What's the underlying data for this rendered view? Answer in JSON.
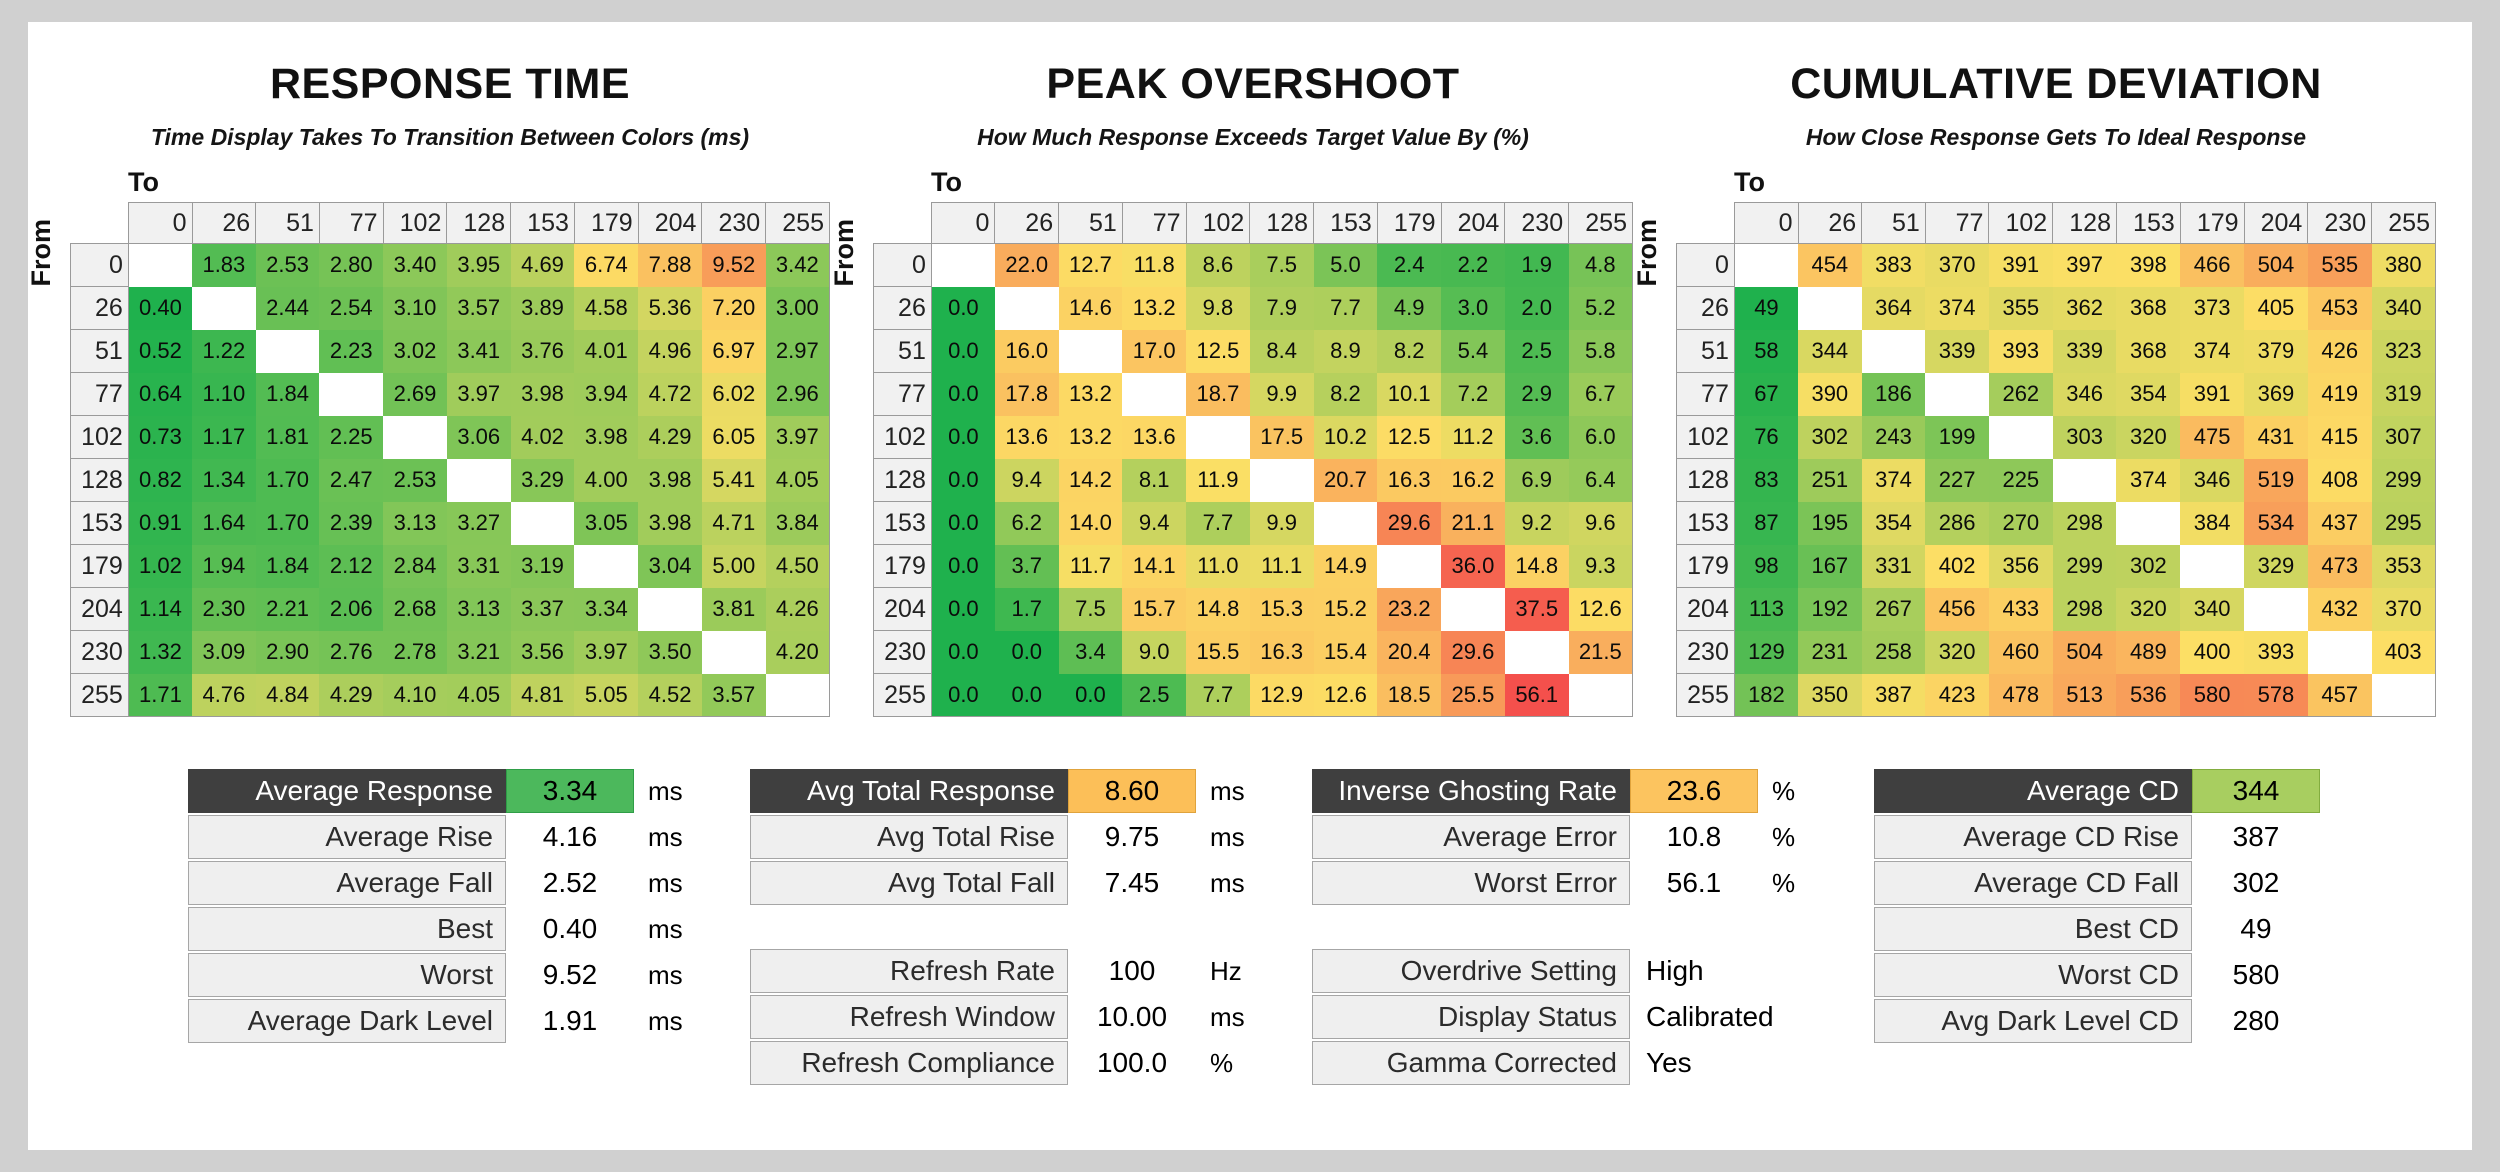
{
  "page": {
    "background": "#d0d0d0",
    "card_background": "#ffffff"
  },
  "colors": {
    "scale_green": "#1fb14d",
    "scale_yellow": "#fcdf65",
    "scale_red": "#f4504c",
    "header_cell_bg": "#f1f1f1",
    "header_cell_border": "#9a9a9a",
    "summary_header_bg": "#3f3f3f",
    "summary_label_bg": "#efefef",
    "summary_label_border": "#a6a6a6"
  },
  "axis": {
    "to_label": "To",
    "from_label": "From"
  },
  "levels": [
    "0",
    "26",
    "51",
    "77",
    "102",
    "128",
    "153",
    "179",
    "204",
    "230",
    "255"
  ],
  "chart_data": [
    {
      "type": "heatmap",
      "title": "RESPONSE TIME",
      "subtitle": "Time Display Takes To Transition Between Colors (ms)",
      "unit": "ms",
      "x_axis": "To",
      "y_axis": "From",
      "categories": [
        0,
        26,
        51,
        77,
        102,
        128,
        153,
        179,
        204,
        230,
        255
      ],
      "rows": [
        [
          null,
          "1.83",
          "2.53",
          "2.80",
          "3.40",
          "3.95",
          "4.69",
          "6.74",
          "7.88",
          "9.52",
          "3.42"
        ],
        [
          "0.40",
          null,
          "2.44",
          "2.54",
          "3.10",
          "3.57",
          "3.89",
          "4.58",
          "5.36",
          "7.20",
          "3.00"
        ],
        [
          "0.52",
          "1.22",
          null,
          "2.23",
          "3.02",
          "3.41",
          "3.76",
          "4.01",
          "4.96",
          "6.97",
          "2.97"
        ],
        [
          "0.64",
          "1.10",
          "1.84",
          null,
          "2.69",
          "3.97",
          "3.98",
          "3.94",
          "4.72",
          "6.02",
          "2.96"
        ],
        [
          "0.73",
          "1.17",
          "1.81",
          "2.25",
          null,
          "3.06",
          "4.02",
          "3.98",
          "4.29",
          "6.05",
          "3.97"
        ],
        [
          "0.82",
          "1.34",
          "1.70",
          "2.47",
          "2.53",
          null,
          "3.29",
          "4.00",
          "3.98",
          "5.41",
          "4.05"
        ],
        [
          "0.91",
          "1.64",
          "1.70",
          "2.39",
          "3.13",
          "3.27",
          null,
          "3.05",
          "3.98",
          "4.71",
          "3.84"
        ],
        [
          "1.02",
          "1.94",
          "1.84",
          "2.12",
          "2.84",
          "3.31",
          "3.19",
          null,
          "3.04",
          "5.00",
          "4.50"
        ],
        [
          "1.14",
          "2.30",
          "2.21",
          "2.06",
          "2.68",
          "3.13",
          "3.37",
          "3.34",
          null,
          "3.81",
          "4.26"
        ],
        [
          "1.32",
          "3.09",
          "2.90",
          "2.76",
          "2.78",
          "3.21",
          "3.56",
          "3.97",
          "3.50",
          null,
          "4.20"
        ],
        [
          "1.71",
          "4.76",
          "4.84",
          "4.29",
          "4.10",
          "4.05",
          "4.81",
          "5.05",
          "4.52",
          "3.57",
          null
        ]
      ],
      "color_scale": {
        "min": 0.4,
        "mid": 6.5,
        "max": 13
      }
    },
    {
      "type": "heatmap",
      "title": "PEAK OVERSHOOT",
      "subtitle": "How Much Response Exceeds Target Value By (%)",
      "unit": "%",
      "x_axis": "To",
      "y_axis": "From",
      "categories": [
        0,
        26,
        51,
        77,
        102,
        128,
        153,
        179,
        204,
        230,
        255
      ],
      "rows": [
        [
          null,
          "22.0",
          "12.7",
          "11.8",
          "8.6",
          "7.5",
          "5.0",
          "2.4",
          "2.2",
          "1.9",
          "4.8"
        ],
        [
          "0.0",
          null,
          "14.6",
          "13.2",
          "9.8",
          "7.9",
          "7.7",
          "4.9",
          "3.0",
          "2.0",
          "5.2"
        ],
        [
          "0.0",
          "16.0",
          null,
          "17.0",
          "12.5",
          "8.4",
          "8.9",
          "8.2",
          "5.4",
          "2.5",
          "5.8"
        ],
        [
          "0.0",
          "17.8",
          "13.2",
          null,
          "18.7",
          "9.9",
          "8.2",
          "10.1",
          "7.2",
          "2.9",
          "6.7"
        ],
        [
          "0.0",
          "13.6",
          "13.2",
          "13.6",
          null,
          "17.5",
          "10.2",
          "12.5",
          "11.2",
          "3.6",
          "6.0"
        ],
        [
          "0.0",
          "9.4",
          "14.2",
          "8.1",
          "11.9",
          null,
          "20.7",
          "16.3",
          "16.2",
          "6.9",
          "6.4"
        ],
        [
          "0.0",
          "6.2",
          "14.0",
          "9.4",
          "7.7",
          "9.9",
          null,
          "29.6",
          "21.1",
          "9.2",
          "9.6"
        ],
        [
          "0.0",
          "3.7",
          "11.7",
          "14.1",
          "11.0",
          "11.1",
          "14.9",
          null,
          "36.0",
          "14.8",
          "9.3"
        ],
        [
          "0.0",
          "1.7",
          "7.5",
          "15.7",
          "14.8",
          "15.3",
          "15.2",
          "23.2",
          null,
          "37.5",
          "12.6"
        ],
        [
          "0.0",
          "0.0",
          "3.4",
          "9.0",
          "15.5",
          "16.3",
          "15.4",
          "20.4",
          "29.6",
          null,
          "21.5"
        ],
        [
          "0.0",
          "0.0",
          "0.0",
          "2.5",
          "7.7",
          "12.9",
          "12.6",
          "18.5",
          "25.5",
          "56.1",
          null
        ]
      ],
      "color_scale": {
        "min": 0,
        "mid": 12,
        "max": 40
      }
    },
    {
      "type": "heatmap",
      "title": "CUMULATIVE DEVIATION",
      "subtitle": "How Close Response Gets To Ideal Response",
      "unit": "",
      "x_axis": "To",
      "y_axis": "From",
      "categories": [
        0,
        26,
        51,
        77,
        102,
        128,
        153,
        179,
        204,
        230,
        255
      ],
      "rows": [
        [
          null,
          "454",
          "383",
          "370",
          "391",
          "397",
          "398",
          "466",
          "504",
          "535",
          "380"
        ],
        [
          "49",
          null,
          "364",
          "374",
          "355",
          "362",
          "368",
          "373",
          "405",
          "453",
          "340"
        ],
        [
          "58",
          "344",
          null,
          "339",
          "393",
          "339",
          "368",
          "374",
          "379",
          "426",
          "323"
        ],
        [
          "67",
          "390",
          "186",
          null,
          "262",
          "346",
          "354",
          "391",
          "369",
          "419",
          "319"
        ],
        [
          "76",
          "302",
          "243",
          "199",
          null,
          "303",
          "320",
          "475",
          "431",
          "415",
          "307"
        ],
        [
          "83",
          "251",
          "374",
          "227",
          "225",
          null,
          "374",
          "346",
          "519",
          "408",
          "299"
        ],
        [
          "87",
          "195",
          "354",
          "286",
          "270",
          "298",
          null,
          "384",
          "534",
          "437",
          "295"
        ],
        [
          "98",
          "167",
          "331",
          "402",
          "356",
          "299",
          "302",
          null,
          "329",
          "473",
          "353"
        ],
        [
          "113",
          "192",
          "267",
          "456",
          "433",
          "298",
          "320",
          "340",
          null,
          "432",
          "370"
        ],
        [
          "129",
          "231",
          "258",
          "320",
          "460",
          "504",
          "489",
          "400",
          "393",
          null,
          "403"
        ],
        [
          "182",
          "350",
          "387",
          "423",
          "478",
          "513",
          "536",
          "580",
          "578",
          "457",
          null
        ]
      ],
      "color_scale": {
        "min": 49,
        "mid": 400,
        "max": 700
      }
    }
  ],
  "summary_columns": [
    {
      "tables": [
        {
          "rows": [
            {
              "label": "Average Response",
              "value": "3.34",
              "unit": "ms",
              "header": true,
              "chip_bg": "#4cb85c",
              "chip_border": "#2f9e47"
            },
            {
              "label": "Average Rise",
              "value": "4.16",
              "unit": "ms"
            },
            {
              "label": "Average Fall",
              "value": "2.52",
              "unit": "ms"
            },
            {
              "label": "Best",
              "value": "0.40",
              "unit": "ms"
            },
            {
              "label": "Worst",
              "value": "9.52",
              "unit": "ms"
            },
            {
              "label": "Average Dark Level",
              "value": "1.91",
              "unit": "ms"
            }
          ]
        }
      ]
    },
    {
      "tables": [
        {
          "rows": [
            {
              "label": "Avg Total Response",
              "value": "8.60",
              "unit": "ms",
              "header": true,
              "chip_bg": "#fcbf58",
              "chip_border": "#e0a33c"
            },
            {
              "label": "Avg Total Rise",
              "value": "9.75",
              "unit": "ms"
            },
            {
              "label": "Avg Total Fall",
              "value": "7.45",
              "unit": "ms"
            }
          ]
        },
        {
          "rows": [
            {
              "label": "Refresh Rate",
              "value": "100",
              "unit": "Hz"
            },
            {
              "label": "Refresh Window",
              "value": "10.00",
              "unit": "ms"
            },
            {
              "label": "Refresh Compliance",
              "value": "100.0",
              "unit": "%"
            }
          ]
        }
      ]
    },
    {
      "tables": [
        {
          "rows": [
            {
              "label": "Inverse Ghosting Rate",
              "value": "23.6",
              "unit": "%",
              "header": true,
              "chip_bg": "#fcc45f",
              "chip_border": "#e0a33c"
            },
            {
              "label": "Average Error",
              "value": "10.8",
              "unit": "%"
            },
            {
              "label": "Worst Error",
              "value": "56.1",
              "unit": "%"
            }
          ]
        },
        {
          "rows": [
            {
              "label": "Overdrive Setting",
              "value": "High",
              "unit": ""
            },
            {
              "label": "Display Status",
              "value": "Calibrated",
              "unit": ""
            },
            {
              "label": "Gamma Corrected",
              "value": "Yes",
              "unit": ""
            }
          ]
        }
      ]
    },
    {
      "tables": [
        {
          "rows": [
            {
              "label": "Average CD",
              "value": "344",
              "unit": "",
              "header": true,
              "chip_bg": "#a8ce60",
              "chip_border": "#83ad3f"
            },
            {
              "label": "Average CD Rise",
              "value": "387",
              "unit": ""
            },
            {
              "label": "Average CD Fall",
              "value": "302",
              "unit": ""
            },
            {
              "label": "Best CD",
              "value": "49",
              "unit": ""
            },
            {
              "label": "Worst CD",
              "value": "580",
              "unit": ""
            },
            {
              "label": "Avg Dark Level CD",
              "value": "280",
              "unit": ""
            }
          ]
        }
      ]
    }
  ]
}
